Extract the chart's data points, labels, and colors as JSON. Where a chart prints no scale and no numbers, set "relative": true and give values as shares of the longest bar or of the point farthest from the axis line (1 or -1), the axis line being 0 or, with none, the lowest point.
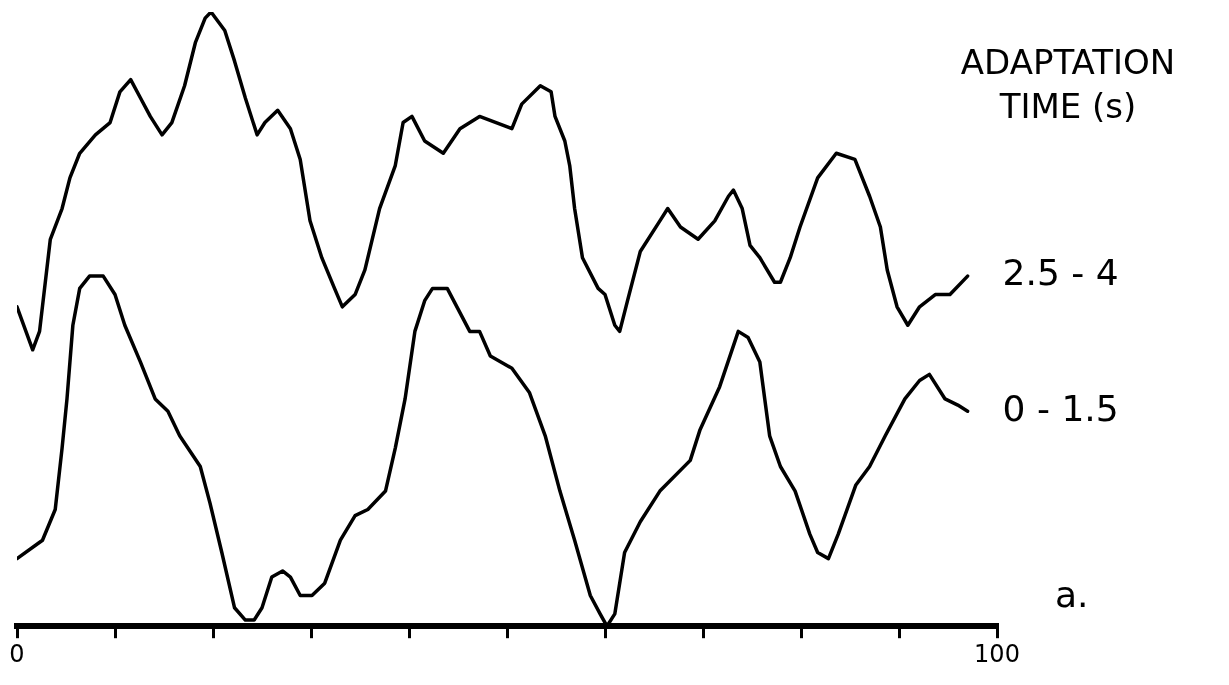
{
  "chart_data": {
    "type": "line",
    "relative": true,
    "legend_title": "ADAPTATION TIME (s)",
    "annotations": [
      "a."
    ],
    "xlim": [
      0,
      100
    ],
    "xticks": [
      0,
      {
        "value": 10,
        "label": null
      },
      {
        "value": 20,
        "label": null
      },
      {
        "value": 30,
        "label": null
      },
      {
        "value": 40,
        "label": null
      },
      {
        "value": 50,
        "label": null
      },
      {
        "value": 60,
        "label": null
      },
      {
        "value": 70,
        "label": null
      },
      {
        "value": 80,
        "label": null
      },
      {
        "value": 90,
        "label": null
      },
      100
    ],
    "grid": false,
    "legend": false,
    "marker": "none",
    "line_style": "solid",
    "series": [
      {
        "name": "2.5 - 4",
        "color": "#000000",
        "x": [
          0,
          1.6,
          2.3,
          3.4,
          4.6,
          5.4,
          6.4,
          8.0,
          9.5,
          10.5,
          11.6,
          12.6,
          13.6,
          14.8,
          15.8,
          17.1,
          18.2,
          19.2,
          19.8,
          21.2,
          22.2,
          23.3,
          24.5,
          25.3,
          26.6,
          27.9,
          28.9,
          29.9,
          31.1,
          32.4,
          33.2,
          34.5,
          35.5,
          37.0,
          38.6,
          39.4,
          40.3,
          41.6,
          43.5,
          45.2,
          47.2,
          50.5,
          51.5,
          53.4,
          54.5,
          54.9,
          55.9,
          56.4,
          56.9,
          57.7,
          59.3,
          60.0,
          61.0,
          61.5,
          62.3,
          63.6,
          65.6,
          66.4,
          67.7,
          69.5,
          71.2,
          72.6,
          73.1,
          74.0,
          74.8,
          75.8,
          77.3,
          77.9,
          78.9,
          79.9,
          81.7,
          83.6,
          85.5,
          87.0,
          88.1,
          88.8,
          89.8,
          90.9,
          92.1,
          93.7,
          95.2,
          97.0
        ],
        "values": [
          0.52,
          0.45,
          0.48,
          0.63,
          0.68,
          0.73,
          0.77,
          0.8,
          0.82,
          0.87,
          0.89,
          0.86,
          0.83,
          0.8,
          0.82,
          0.88,
          0.95,
          0.99,
          1,
          0.97,
          0.92,
          0.86,
          0.8,
          0.82,
          0.84,
          0.81,
          0.76,
          0.66,
          0.6,
          0.55,
          0.52,
          0.54,
          0.58,
          0.68,
          0.75,
          0.82,
          0.83,
          0.79,
          0.77,
          0.81,
          0.83,
          0.81,
          0.85,
          0.88,
          0.87,
          0.83,
          0.79,
          0.75,
          0.68,
          0.6,
          0.55,
          0.54,
          0.49,
          0.48,
          0.53,
          0.61,
          0.66,
          0.68,
          0.65,
          0.63,
          0.66,
          0.7,
          0.71,
          0.68,
          0.62,
          0.6,
          0.56,
          0.56,
          0.6,
          0.65,
          0.73,
          0.77,
          0.76,
          0.7,
          0.65,
          0.58,
          0.52,
          0.49,
          0.52,
          0.54,
          0.54,
          0.57
        ]
      },
      {
        "name": "0 - 1.5",
        "color": "#000000",
        "x": [
          0,
          2.6,
          3.9,
          4.6,
          5.1,
          5.7,
          6.4,
          7.4,
          8.8,
          10.0,
          11.0,
          12.6,
          14.1,
          15.4,
          16.6,
          18.7,
          19.7,
          20.9,
          22.2,
          23.3,
          24.2,
          25.0,
          26.0,
          27.1,
          27.9,
          28.9,
          30.1,
          31.4,
          33.0,
          34.5,
          35.8,
          37.6,
          38.6,
          39.6,
          40.6,
          41.6,
          42.4,
          43.9,
          46.2,
          47.2,
          48.3,
          50.5,
          52.3,
          53.9,
          55.4,
          56.9,
          58.5,
          59.5,
          60.2,
          61.0,
          62.0,
          63.6,
          65.6,
          68.7,
          69.7,
          71.7,
          73.6,
          74.6,
          75.8,
          76.3,
          76.8,
          77.9,
          79.4,
          80.9,
          81.7,
          82.8,
          83.8,
          85.6,
          87.0,
          88.6,
          90.6,
          92.1,
          93.1,
          94.7,
          96.0,
          97.0
        ],
        "values": [
          0.11,
          0.14,
          0.19,
          0.29,
          0.37,
          0.49,
          0.55,
          0.57,
          0.57,
          0.54,
          0.49,
          0.43,
          0.37,
          0.35,
          0.31,
          0.26,
          0.2,
          0.12,
          0.03,
          0.01,
          0.01,
          0.03,
          0.08,
          0.09,
          0.08,
          0.05,
          0.05,
          0.07,
          0.14,
          0.18,
          0.19,
          0.22,
          0.29,
          0.37,
          0.48,
          0.53,
          0.55,
          0.55,
          0.48,
          0.48,
          0.44,
          0.42,
          0.38,
          0.31,
          0.22,
          0.14,
          0.05,
          0.02,
          0,
          0.02,
          0.12,
          0.17,
          0.22,
          0.27,
          0.32,
          0.39,
          0.48,
          0.47,
          0.43,
          0.37,
          0.31,
          0.26,
          0.22,
          0.15,
          0.12,
          0.11,
          0.15,
          0.23,
          0.26,
          0.31,
          0.37,
          0.4,
          0.41,
          0.37,
          0.36,
          0.35
        ]
      }
    ]
  }
}
